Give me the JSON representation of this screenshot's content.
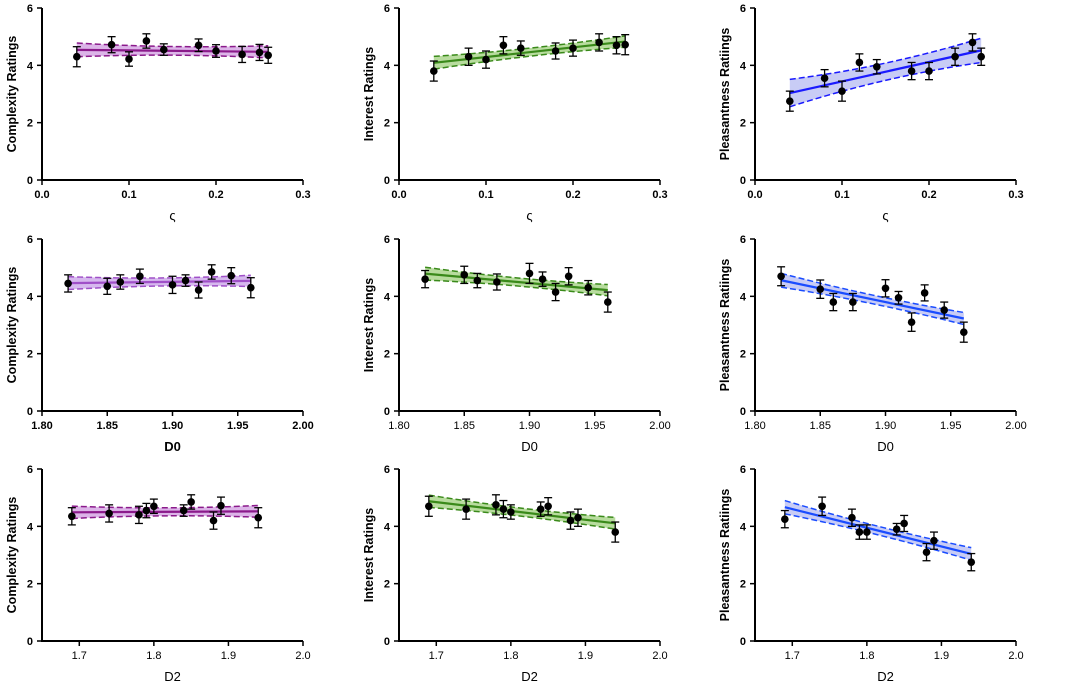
{
  "chart_data": [
    {
      "type": "scatter",
      "title": "",
      "xlabel": "ς",
      "ylabel": "Complexity Ratings",
      "xlim": [
        0,
        0.3
      ],
      "ylim": [
        0,
        6
      ],
      "xticks": [
        "0.0",
        "0.1",
        "0.2",
        "0.3"
      ],
      "xtick_values": [
        0,
        0.1,
        0.2,
        0.3
      ],
      "yticks": [
        "0",
        "2",
        "4",
        "6"
      ],
      "color": "#8b1a8b",
      "band": "#dcb4e8",
      "ci_halfwidth": 0.15,
      "x": [
        0.04,
        0.08,
        0.1,
        0.12,
        0.14,
        0.18,
        0.2,
        0.23,
        0.25,
        0.26
      ],
      "y": [
        4.3,
        4.72,
        4.22,
        4.85,
        4.55,
        4.7,
        4.5,
        4.38,
        4.45,
        4.35
      ],
      "err": [
        0.35,
        0.28,
        0.25,
        0.25,
        0.2,
        0.22,
        0.22,
        0.28,
        0.28,
        0.28
      ]
    },
    {
      "type": "scatter",
      "title": "",
      "xlabel": "ς",
      "ylabel": "Interest Ratings",
      "xlim": [
        0,
        0.3
      ],
      "ylim": [
        0,
        6
      ],
      "xticks": [
        "0.0",
        "0.1",
        "0.2",
        "0.3"
      ],
      "xtick_values": [
        0,
        0.1,
        0.2,
        0.3
      ],
      "yticks": [
        "0",
        "2",
        "4",
        "6"
      ],
      "color": "#3a8a1a",
      "band": "#b8dc9e",
      "ci_halfwidth": 0.14,
      "x": [
        0.04,
        0.08,
        0.1,
        0.12,
        0.14,
        0.18,
        0.2,
        0.23,
        0.25,
        0.26
      ],
      "y": [
        3.8,
        4.3,
        4.2,
        4.7,
        4.6,
        4.5,
        4.6,
        4.8,
        4.7,
        4.72
      ],
      "err": [
        0.35,
        0.3,
        0.3,
        0.3,
        0.25,
        0.28,
        0.28,
        0.3,
        0.3,
        0.35
      ]
    },
    {
      "type": "scatter",
      "title": "",
      "xlabel": "ς",
      "ylabel": "Pleasantness Ratiings",
      "xlim": [
        0,
        0.3
      ],
      "ylim": [
        0,
        6
      ],
      "xticks": [
        "0.0",
        "0.1",
        "0.2",
        "0.3"
      ],
      "xtick_values": [
        0,
        0.1,
        0.2,
        0.3
      ],
      "yticks": [
        "0",
        "2",
        "4",
        "6"
      ],
      "color": "#1a1aff",
      "band": "#c8ccf5",
      "ci_halfwidth": 0.3,
      "x": [
        0.04,
        0.08,
        0.1,
        0.12,
        0.14,
        0.18,
        0.2,
        0.23,
        0.25,
        0.26
      ],
      "y": [
        2.75,
        3.55,
        3.1,
        4.1,
        3.95,
        3.8,
        3.8,
        4.3,
        4.8,
        4.3
      ],
      "err": [
        0.35,
        0.3,
        0.35,
        0.3,
        0.25,
        0.3,
        0.3,
        0.3,
        0.3,
        0.3
      ]
    },
    {
      "type": "scatter",
      "title": "",
      "xlabel": "D0",
      "ylabel": "Complexity Ratings",
      "xlim": [
        1.8,
        2.0
      ],
      "ylim": [
        0,
        6
      ],
      "xticks": [
        "1.80",
        "1.85",
        "1.90",
        "1.95",
        "2.00"
      ],
      "xtick_values": [
        1.8,
        1.85,
        1.9,
        1.95,
        2.0
      ],
      "yticks": [
        "0",
        "2",
        "4",
        "6"
      ],
      "color": "#a050c8",
      "band": "#d6b8ee",
      "ci_halfwidth": 0.14,
      "x": [
        1.82,
        1.85,
        1.86,
        1.875,
        1.9,
        1.91,
        1.92,
        1.93,
        1.945,
        1.96
      ],
      "y": [
        4.45,
        4.35,
        4.5,
        4.7,
        4.4,
        4.55,
        4.22,
        4.85,
        4.72,
        4.3
      ],
      "err": [
        0.3,
        0.28,
        0.25,
        0.25,
        0.3,
        0.2,
        0.28,
        0.25,
        0.28,
        0.35
      ]
    },
    {
      "type": "scatter",
      "title": "",
      "xlabel": "D0",
      "ylabel": "Interest Ratings",
      "xlim": [
        1.8,
        2.0
      ],
      "ylim": [
        0,
        6
      ],
      "xticks": [
        "1.80",
        "1.85",
        "1.90",
        "1.95",
        "2.00"
      ],
      "xtick_values": [
        1.8,
        1.85,
        1.9,
        1.95,
        2.0
      ],
      "yticks": [
        "0",
        "2",
        "4",
        "6"
      ],
      "color": "#3a8a1a",
      "band": "#b8dc9e",
      "ci_halfwidth": 0.14,
      "x": [
        1.82,
        1.85,
        1.86,
        1.875,
        1.9,
        1.91,
        1.92,
        1.93,
        1.945,
        1.96
      ],
      "y": [
        4.6,
        4.75,
        4.55,
        4.5,
        4.8,
        4.6,
        4.15,
        4.7,
        4.3,
        3.8
      ],
      "err": [
        0.3,
        0.3,
        0.25,
        0.28,
        0.35,
        0.25,
        0.3,
        0.3,
        0.25,
        0.35
      ]
    },
    {
      "type": "scatter",
      "title": "",
      "xlabel": "D0",
      "ylabel": "Pleasantness Ratiings",
      "xlim": [
        1.8,
        2.0
      ],
      "ylim": [
        0,
        6
      ],
      "xticks": [
        "1.80",
        "1.85",
        "1.90",
        "1.95",
        "2.00"
      ],
      "xtick_values": [
        1.8,
        1.85,
        1.9,
        1.95,
        2.0
      ],
      "yticks": [
        "0",
        "2",
        "4",
        "6"
      ],
      "color": "#1a4cff",
      "band": "#c8ccf5",
      "ci_halfwidth": 0.15,
      "x": [
        1.82,
        1.85,
        1.86,
        1.875,
        1.9,
        1.91,
        1.92,
        1.93,
        1.945,
        1.96
      ],
      "y": [
        4.7,
        4.25,
        3.8,
        3.8,
        4.28,
        3.95,
        3.1,
        4.12,
        3.52,
        2.75
      ],
      "err": [
        0.33,
        0.32,
        0.3,
        0.3,
        0.3,
        0.22,
        0.32,
        0.28,
        0.28,
        0.35
      ]
    },
    {
      "type": "scatter",
      "title": "",
      "xlabel": "D2",
      "ylabel": "Complexity Ratings",
      "xlim": [
        1.65,
        2.0
      ],
      "ylim": [
        0,
        6
      ],
      "xticks": [
        "1.7",
        "1.8",
        "1.9",
        "2.0"
      ],
      "xtick_values": [
        1.7,
        1.8,
        1.9,
        2.0
      ],
      "yticks": [
        "0",
        "2",
        "4",
        "6"
      ],
      "color": "#8b1a8b",
      "band": "#dcb4e8",
      "ci_halfwidth": 0.14,
      "x": [
        1.69,
        1.74,
        1.78,
        1.79,
        1.8,
        1.84,
        1.85,
        1.88,
        1.89,
        1.94
      ],
      "y": [
        4.35,
        4.45,
        4.4,
        4.55,
        4.7,
        4.55,
        4.85,
        4.2,
        4.72,
        4.3
      ],
      "err": [
        0.3,
        0.3,
        0.3,
        0.25,
        0.25,
        0.2,
        0.25,
        0.3,
        0.3,
        0.35
      ]
    },
    {
      "type": "scatter",
      "title": "",
      "xlabel": "D2",
      "ylabel": "Interest Ratings",
      "xlim": [
        1.65,
        2.0
      ],
      "ylim": [
        0,
        6
      ],
      "xticks": [
        "1.7",
        "1.8",
        "1.9",
        "2.0"
      ],
      "xtick_values": [
        1.7,
        1.8,
        1.9,
        2.0
      ],
      "yticks": [
        "0",
        "2",
        "4",
        "6"
      ],
      "color": "#3a8a1a",
      "band": "#b8dc9e",
      "ci_halfwidth": 0.14,
      "x": [
        1.69,
        1.74,
        1.78,
        1.79,
        1.8,
        1.84,
        1.85,
        1.88,
        1.89,
        1.94
      ],
      "y": [
        4.7,
        4.6,
        4.75,
        4.6,
        4.5,
        4.6,
        4.7,
        4.2,
        4.3,
        3.8
      ],
      "err": [
        0.35,
        0.35,
        0.35,
        0.3,
        0.25,
        0.25,
        0.3,
        0.3,
        0.3,
        0.35
      ]
    },
    {
      "type": "scatter",
      "title": "",
      "xlabel": "D2",
      "ylabel": "Pleasantness Ratiings",
      "xlim": [
        1.65,
        2.0
      ],
      "ylim": [
        0,
        6
      ],
      "xticks": [
        "1.7",
        "1.8",
        "1.9",
        "2.0"
      ],
      "xtick_values": [
        1.7,
        1.8,
        1.9,
        2.0
      ],
      "yticks": [
        "0",
        "2",
        "4",
        "6"
      ],
      "color": "#1a4cff",
      "band": "#c8ccf5",
      "ci_halfwidth": 0.15,
      "x": [
        1.69,
        1.74,
        1.78,
        1.79,
        1.8,
        1.84,
        1.85,
        1.88,
        1.89,
        1.94
      ],
      "y": [
        4.25,
        4.7,
        4.3,
        3.8,
        3.8,
        3.9,
        4.1,
        3.1,
        3.5,
        2.75
      ],
      "err": [
        0.3,
        0.32,
        0.3,
        0.25,
        0.25,
        0.2,
        0.28,
        0.3,
        0.3,
        0.3
      ]
    }
  ]
}
